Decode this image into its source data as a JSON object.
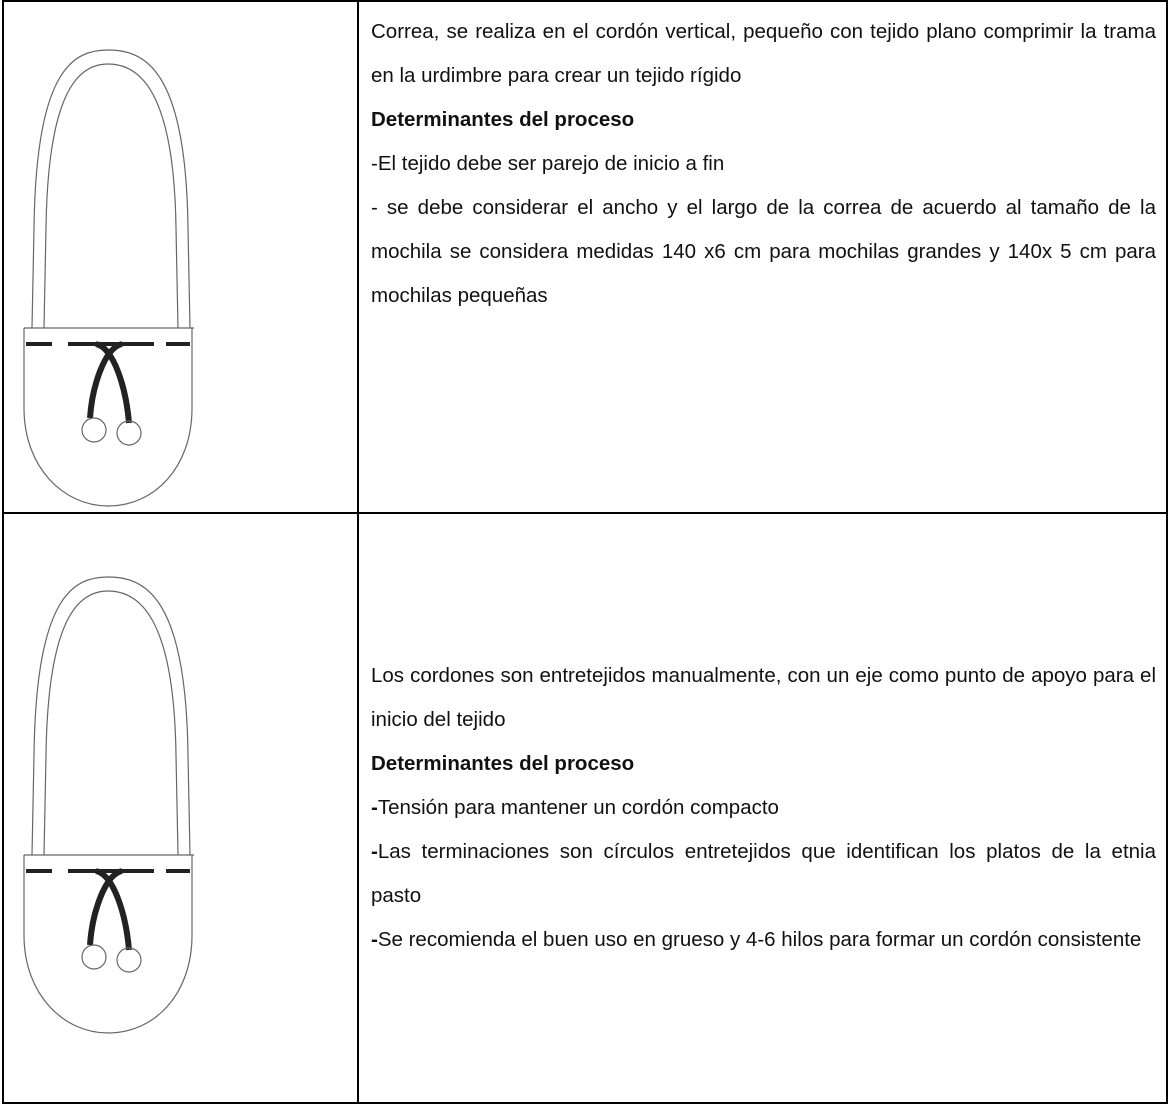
{
  "rows": [
    {
      "paragraphs": [
        {
          "text": "Correa, se realiza en el cordón vertical, pequeño con tejido plano comprimir la trama en la urdimbre para crear un tejido rígido"
        },
        {
          "heading": "Determinantes del proceso"
        },
        {
          "text": "-El tejido debe ser parejo de inicio a fin"
        },
        {
          "text": "- se debe considerar el ancho y el largo de la correa de acuerdo al tamaño de la mochila se considera medidas 140 x6 cm para mochilas grandes y 140x 5 cm para mochilas pequeñas"
        }
      ]
    },
    {
      "paragraphs": [
        {
          "text": "Los cordones son entretejidos manualmente, con un eje como punto de apoyo para el inicio del tejido"
        },
        {
          "heading": "Determinantes del proceso"
        },
        {
          "dash": "-",
          "text": "Tensión para mantener un cordón compacto"
        },
        {
          "dash": "-",
          "text": "Las terminaciones son círculos entretejidos que identifican los platos de la etnia pasto"
        },
        {
          "dash": "-",
          "text": "Se recomienda el buen uso en grueso y 4-6 hilos para formar un cordón consistente"
        }
      ]
    }
  ]
}
